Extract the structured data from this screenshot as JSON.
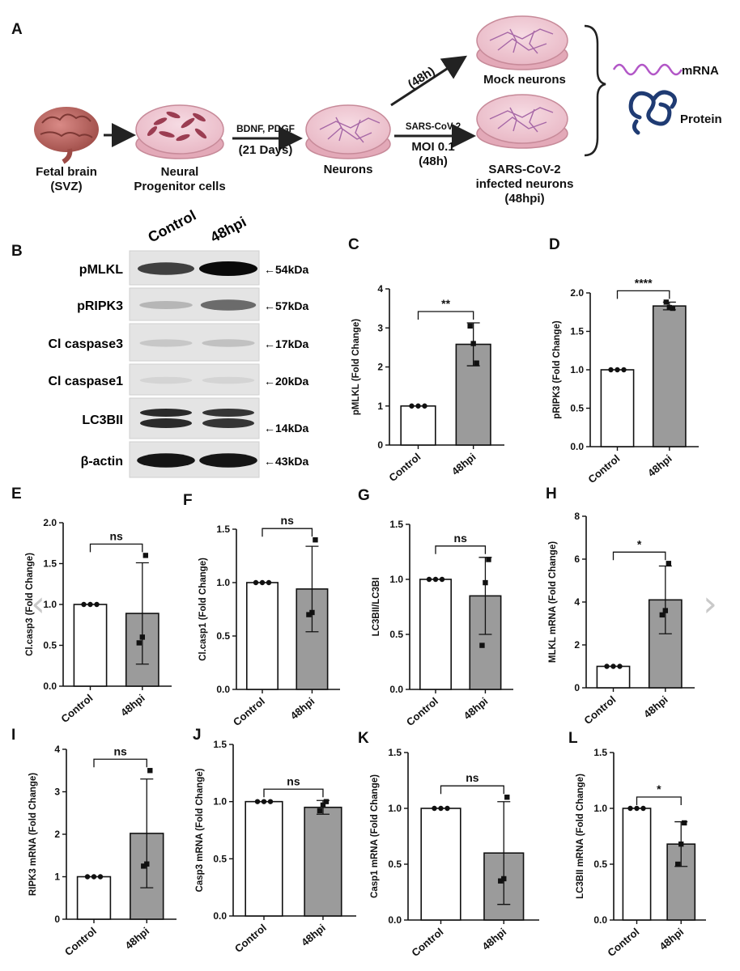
{
  "panel_letters": [
    "A",
    "B",
    "C",
    "D",
    "E",
    "F",
    "G",
    "H",
    "I",
    "J",
    "K",
    "L"
  ],
  "schematic": {
    "fetal_brain": [
      "Fetal brain",
      "(SVZ)"
    ],
    "npc": [
      "Neural",
      "Progenitor cells"
    ],
    "step1_top": "BDNF, PDGF",
    "step1_bottom": "(21 Days)",
    "neurons": "Neurons",
    "mock_time": "(48h)",
    "mock_label": "Mock neurons",
    "infect_top": "SARS-CoV-2",
    "infect_moi": "MOI 0.1",
    "infect_time": "(48h)",
    "infected_label": [
      "SARS-CoV-2",
      "infected neurons",
      "(48hpi)"
    ],
    "mrna": "mRNA",
    "protein": "Protein"
  },
  "blot": {
    "lanes": [
      "Control",
      "48hpi"
    ],
    "rows": [
      {
        "name": "pMLKL",
        "mw": "←54kDa",
        "band_control": 0.75,
        "band_48hpi": 1.0
      },
      {
        "name": "pRIPK3",
        "mw": "←57kDa",
        "band_control": 0.2,
        "band_48hpi": 0.55
      },
      {
        "name": "Cl caspase3",
        "mw": "←17kDa",
        "band_control": 0.12,
        "band_48hpi": 0.15
      },
      {
        "name": "Cl caspase1",
        "mw": "←20kDa",
        "band_control": 0.06,
        "band_48hpi": 0.06
      },
      {
        "name": "LC3BII",
        "mw": "←14kDa",
        "band_control": 0.85,
        "band_48hpi": 0.8
      },
      {
        "name": "β-actin",
        "mw": "←43kDa",
        "band_control": 0.95,
        "band_48hpi": 0.95
      }
    ]
  },
  "colors": {
    "control_bar": "#ffffff",
    "treated_bar": "#9b9b9b",
    "outline": "#111111"
  },
  "chart_data": [
    {
      "id": "C",
      "type": "bar",
      "categories": [
        "Control",
        "48hpi"
      ],
      "ylabel": "pMLKL (Fold Change)",
      "ylim": [
        0,
        4
      ],
      "yticks": [
        0,
        1,
        2,
        3,
        4
      ],
      "tick_labels": [
        "0",
        "1",
        "2",
        "3",
        "4"
      ],
      "values": [
        1.0,
        2.58
      ],
      "errors": [
        0,
        0.55
      ],
      "points": [
        [
          1,
          1,
          1
        ],
        [
          2.1,
          2.6,
          3.05
        ]
      ],
      "significance": "**"
    },
    {
      "id": "D",
      "type": "bar",
      "categories": [
        "Control",
        "48hpi"
      ],
      "ylabel": "pRIPK3 (Fold Change)",
      "ylim": [
        0,
        2
      ],
      "yticks": [
        0,
        0.5,
        1,
        1.5,
        2
      ],
      "tick_labels": [
        "0.0",
        "0.5",
        "1.0",
        "1.5",
        "2.0"
      ],
      "values": [
        1.0,
        1.83
      ],
      "errors": [
        0,
        0.05
      ],
      "points": [
        [
          1,
          1,
          1
        ],
        [
          1.8,
          1.81,
          1.88
        ]
      ],
      "significance": "****"
    },
    {
      "id": "E",
      "type": "bar",
      "categories": [
        "Control",
        "48hpi"
      ],
      "ylabel": "Cl.casp3 (Fold Change)",
      "ylim": [
        0,
        2
      ],
      "yticks": [
        0,
        0.5,
        1,
        1.5,
        2
      ],
      "tick_labels": [
        "0.0",
        "0.5",
        "1.0",
        "1.5",
        "2.0"
      ],
      "values": [
        1.0,
        0.89
      ],
      "errors": [
        0,
        0.62
      ],
      "points": [
        [
          1,
          1,
          1
        ],
        [
          1.6,
          0.6,
          0.53
        ]
      ],
      "significance": "ns"
    },
    {
      "id": "F",
      "type": "bar",
      "categories": [
        "Control",
        "48hpi"
      ],
      "ylabel": "Cl.casp1 (Fold Change)",
      "ylim": [
        0,
        1.5
      ],
      "yticks": [
        0,
        0.5,
        1,
        1.5
      ],
      "tick_labels": [
        "0.0",
        "0.5",
        "1.0",
        "1.5"
      ],
      "values": [
        1.0,
        0.94
      ],
      "errors": [
        0,
        0.4
      ],
      "points": [
        [
          1,
          1,
          1
        ],
        [
          1.4,
          0.72,
          0.7
        ]
      ],
      "significance": "ns"
    },
    {
      "id": "G",
      "type": "bar",
      "categories": [
        "Control",
        "48hpi"
      ],
      "ylabel": "LC3BII/LC3BI",
      "ylim": [
        0,
        1.5
      ],
      "yticks": [
        0,
        0.5,
        1,
        1.5
      ],
      "tick_labels": [
        "0.0",
        "0.5",
        "1.0",
        "1.5"
      ],
      "values": [
        1.0,
        0.85
      ],
      "errors": [
        0,
        0.35
      ],
      "points": [
        [
          1,
          1,
          1
        ],
        [
          1.18,
          0.97,
          0.4
        ]
      ],
      "significance": "ns"
    },
    {
      "id": "H",
      "type": "bar",
      "categories": [
        "Control",
        "48hpi"
      ],
      "ylabel": "MLKL mRNA (Fold Change)",
      "ylim": [
        0,
        8
      ],
      "yticks": [
        0,
        2,
        4,
        6,
        8
      ],
      "tick_labels": [
        "0",
        "2",
        "4",
        "6",
        "8"
      ],
      "values": [
        1.0,
        4.1
      ],
      "errors": [
        0,
        1.58
      ],
      "points": [
        [
          1,
          1,
          1
        ],
        [
          5.8,
          3.6,
          3.4
        ]
      ],
      "significance": "*"
    },
    {
      "id": "I",
      "type": "bar",
      "categories": [
        "Control",
        "48hpi"
      ],
      "ylabel": "RIPK3 mRNA (Fold Change)",
      "ylim": [
        0,
        4
      ],
      "yticks": [
        0,
        1,
        2,
        3,
        4
      ],
      "tick_labels": [
        "0",
        "1",
        "2",
        "3",
        "4"
      ],
      "values": [
        1.0,
        2.02
      ],
      "errors": [
        0,
        1.28
      ],
      "points": [
        [
          1,
          1,
          1
        ],
        [
          3.5,
          1.3,
          1.25
        ]
      ],
      "significance": "ns"
    },
    {
      "id": "J",
      "type": "bar",
      "categories": [
        "Control",
        "48hpi"
      ],
      "ylabel": "Casp3 mRNA (Fold Change)",
      "ylim": [
        0,
        1.5
      ],
      "yticks": [
        0,
        0.5,
        1,
        1.5
      ],
      "tick_labels": [
        "0.0",
        "0.5",
        "1.0",
        "1.5"
      ],
      "values": [
        1.0,
        0.95
      ],
      "errors": [
        0,
        0.06
      ],
      "points": [
        [
          1,
          1,
          1
        ],
        [
          1.0,
          0.97,
          0.92
        ]
      ],
      "significance": "ns"
    },
    {
      "id": "K",
      "type": "bar",
      "categories": [
        "Control",
        "48hpi"
      ],
      "ylabel": "Casp1 mRNA (Fold Change)",
      "ylim": [
        0,
        1.5
      ],
      "yticks": [
        0,
        0.5,
        1,
        1.5
      ],
      "tick_labels": [
        "0.0",
        "0.5",
        "1.0",
        "1.5"
      ],
      "values": [
        1.0,
        0.6
      ],
      "errors": [
        0,
        0.46
      ],
      "points": [
        [
          1,
          1,
          1
        ],
        [
          1.1,
          0.37,
          0.35
        ]
      ],
      "significance": "ns"
    },
    {
      "id": "L",
      "type": "bar",
      "categories": [
        "Control",
        "48hpi"
      ],
      "ylabel": "LC3BII mRNA (Fold Change)",
      "ylim": [
        0,
        1.5
      ],
      "yticks": [
        0,
        0.5,
        1,
        1.5
      ],
      "tick_labels": [
        "0.0",
        "0.5",
        "1.0",
        "1.5"
      ],
      "values": [
        1.0,
        0.68
      ],
      "errors": [
        0,
        0.2
      ],
      "points": [
        [
          1,
          1,
          1
        ],
        [
          0.87,
          0.68,
          0.5
        ]
      ],
      "significance": "*"
    }
  ]
}
